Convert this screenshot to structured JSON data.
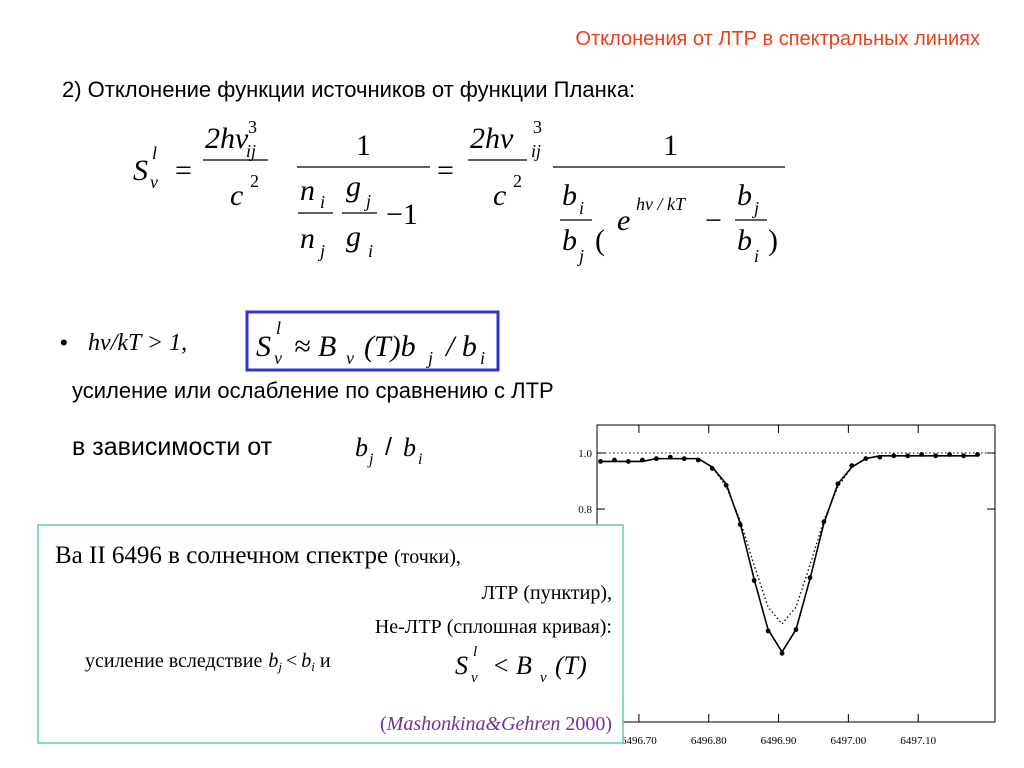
{
  "header": {
    "title": "Отклонения от ЛТР в спектральных линиях"
  },
  "item": "2)  Отклонение функции источников от функции Планка:",
  "formula_main": [
    "S",
    "l",
    "ν",
    "=",
    "2hν",
    "3",
    "ij",
    "c",
    "2",
    "1",
    "n",
    "i",
    "g",
    "j",
    "−1",
    "n",
    "j",
    "g",
    "i",
    "=",
    "2hν",
    "3",
    "ij",
    "c",
    "2",
    "1",
    "b",
    "i",
    "b",
    "j",
    "(",
    "e",
    "hν / kT",
    "−",
    "b",
    "j",
    "b",
    "i",
    ")"
  ],
  "bullet": {
    "marker": "•",
    "condition": "hν/kT > 1,",
    "formula": [
      "S",
      "l",
      "ν",
      "≈ B",
      "ν",
      "(T)b",
      "j",
      "/ b",
      "i"
    ]
  },
  "line_effect": "усиление или ослабление по сравнению с ЛТР",
  "line_depend": {
    "text": "в зависимости от",
    "ratio": [
      "b",
      "j",
      "/",
      "b",
      "i"
    ]
  },
  "caption": {
    "line1": "Ba II 6496 в солнечном спектре",
    "line1_note": "(точки),",
    "line2": "ЛТР (пунктир),",
    "line3": "Не-ЛТР (сплошная кривая):",
    "line4": "усиление вследствие",
    "line4_math": [
      "b",
      "j",
      "<",
      "b",
      "i",
      "и"
    ],
    "line4_formula": [
      "S",
      "l",
      "ν",
      "< B",
      "ν",
      "(T)"
    ],
    "citation_open": "(",
    "citation_authors": "Mashonkina&Gehren",
    "citation_close": "2000)"
  },
  "chart_data": {
    "type": "line",
    "x": [
      6496.645,
      6496.665,
      6496.685,
      6496.705,
      6496.725,
      6496.745,
      6496.765,
      6496.785,
      6496.805,
      6496.825,
      6496.845,
      6496.865,
      6496.885,
      6496.905,
      6496.925,
      6496.945,
      6496.965,
      6496.985,
      6497.005,
      6497.025,
      6497.045,
      6497.065,
      6497.085,
      6497.105,
      6497.125,
      6497.145,
      6497.165,
      6497.185
    ],
    "series": [
      {
        "style": "solid",
        "color": "#000000",
        "values": [
          0.97,
          0.97,
          0.97,
          0.97,
          0.98,
          0.98,
          0.98,
          0.98,
          0.95,
          0.89,
          0.75,
          0.55,
          0.37,
          0.29,
          0.37,
          0.55,
          0.75,
          0.89,
          0.95,
          0.98,
          0.99,
          0.99,
          0.99,
          0.99,
          0.99,
          0.99,
          0.99,
          0.99
        ]
      },
      {
        "style": "dotted",
        "color": "#000000",
        "values": [
          0.97,
          0.97,
          0.97,
          0.97,
          0.98,
          0.98,
          0.98,
          0.98,
          0.95,
          0.88,
          0.76,
          0.6,
          0.45,
          0.39,
          0.45,
          0.6,
          0.76,
          0.88,
          0.95,
          0.98,
          0.99,
          0.99,
          0.99,
          0.99,
          0.99,
          0.99,
          0.99,
          0.99
        ]
      },
      {
        "style": "markers",
        "color": "#000000",
        "values": [
          0.97,
          0.975,
          0.97,
          0.975,
          0.98,
          0.985,
          0.98,
          0.975,
          0.945,
          0.885,
          0.745,
          0.545,
          0.365,
          0.285,
          0.37,
          0.555,
          0.755,
          0.89,
          0.955,
          0.98,
          0.985,
          0.99,
          0.99,
          0.995,
          0.99,
          0.995,
          0.99,
          0.995
        ]
      }
    ],
    "continuum": 1,
    "xlim": [
      6496.64,
      6497.21
    ],
    "ylim": [
      0.04,
      1.1
    ],
    "xticks": [
      {
        "value": 6496.7,
        "label": "6496.70"
      },
      {
        "value": 6496.8,
        "label": "6496.80"
      },
      {
        "value": 6496.9,
        "label": "6496.90"
      },
      {
        "value": 6497.0,
        "label": "6497.00"
      },
      {
        "value": 6497.1,
        "label": "6497.10"
      }
    ],
    "yticks": [
      {
        "value": 1,
        "label": "1.0"
      },
      {
        "value": 0.8,
        "label": "0.8"
      }
    ]
  }
}
